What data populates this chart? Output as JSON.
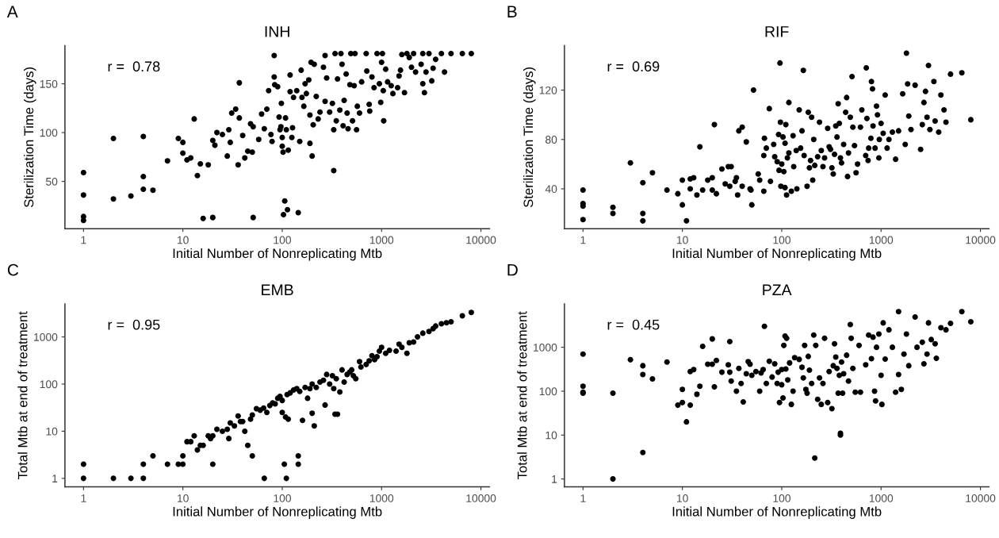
{
  "chart_data": [
    {
      "type": "scatter",
      "title": "INH",
      "xlabel": "Initial Number of Nonreplicating Mtb",
      "ylabel": "Sterilization Time (days)",
      "annotations": [
        "A",
        "r =  0.78"
      ],
      "color": "#000000",
      "marker": "circle",
      "log": "x",
      "xlim": [
        0.65,
        12200
      ],
      "xticks": [
        1,
        10,
        100,
        1000,
        10000
      ],
      "ylim": [
        1.6,
        189
      ],
      "yticks": [
        50,
        100,
        150
      ],
      "x": [
        1,
        1,
        1,
        1,
        2,
        2,
        3,
        4,
        4,
        4,
        5,
        7,
        9,
        10,
        10,
        11,
        12,
        13,
        14,
        15,
        16,
        18,
        20,
        20,
        21,
        22,
        25,
        28,
        29,
        30,
        31,
        34,
        36,
        37,
        37,
        40,
        42,
        45,
        48,
        50,
        51,
        51,
        58,
        62,
        66,
        70,
        73,
        77,
        79,
        83,
        83,
        84,
        90,
        93,
        95,
        97,
        98,
        100,
        100,
        102,
        103,
        106,
        108,
        110,
        113,
        115,
        120,
        120,
        125,
        127,
        130,
        140,
        145,
        150,
        155,
        158,
        165,
        170,
        175,
        185,
        190,
        190,
        195,
        200,
        205,
        210,
        220,
        230,
        240,
        260,
        270,
        270,
        280,
        300,
        320,
        330,
        330,
        340,
        350,
        360,
        380,
        390,
        400,
        410,
        420,
        440,
        450,
        460,
        480,
        490,
        510,
        530,
        540,
        560,
        570,
        600,
        630,
        700,
        710,
        750,
        760,
        800,
        840,
        900,
        950,
        980,
        1000,
        1020,
        1040,
        1050,
        1100,
        1150,
        1250,
        1300,
        1450,
        1500,
        1550,
        1600,
        1700,
        1800,
        1900,
        2000,
        2100,
        2200,
        2500,
        2600,
        2600,
        2700,
        2800,
        3000,
        3200,
        3300,
        3500,
        4000,
        4300,
        5000,
        6500,
        8000
      ],
      "values": [
        59,
        36,
        14,
        10,
        94,
        32,
        35,
        96,
        55,
        42,
        41,
        71,
        94,
        90,
        79,
        72,
        74,
        114,
        56,
        68,
        12,
        67,
        13,
        92,
        87,
        100,
        98,
        76,
        103,
        90,
        120,
        124,
        67,
        115,
        151,
        97,
        74,
        81,
        109,
        80,
        106,
        13,
        93,
        119,
        104,
        124,
        143,
        98,
        91,
        179,
        157,
        149,
        147,
        116,
        103,
        106,
        130,
        95,
        86,
        80,
        16,
        30,
        115,
        103,
        21,
        82,
        159,
        142,
        95,
        105,
        136,
        143,
        18,
        91,
        164,
        136,
        127,
        150,
        140,
        154,
        118,
        89,
        172,
        76,
        108,
        170,
        137,
        114,
        121,
        167,
        132,
        179,
        156,
        121,
        130,
        103,
        61,
        181,
        112,
        155,
        123,
        181,
        170,
        107,
        133,
        160,
        120,
        104,
        149,
        181,
        112,
        148,
        181,
        103,
        127,
        120,
        152,
        181,
        163,
        129,
        122,
        157,
        146,
        181,
        150,
        131,
        172,
        181,
        143,
        112,
        165,
        152,
        148,
        140,
        146,
        158,
        164,
        180,
        141,
        181,
        177,
        167,
        181,
        162,
        170,
        181,
        150,
        141,
        162,
        181,
        153,
        166,
        175,
        181,
        162,
        181,
        181,
        181
      ]
    },
    {
      "type": "scatter",
      "title": "RIF",
      "xlabel": "Initial Number of Nonreplicating Mtb",
      "ylabel": "Sterilization Time (days)",
      "annotations": [
        "B",
        "r =  0.69"
      ],
      "color": "#000000",
      "marker": "circle",
      "log": "x",
      "xlim": [
        0.65,
        12200
      ],
      "xticks": [
        1,
        10,
        100,
        1000,
        10000
      ],
      "ylim": [
        7.7,
        156
      ],
      "yticks": [
        40,
        80,
        120
      ],
      "x": [
        1,
        1,
        1,
        1,
        2,
        2,
        3,
        4,
        4,
        4,
        5,
        7,
        9,
        10,
        10,
        11,
        12,
        12,
        13,
        14,
        15,
        16,
        18,
        20,
        20,
        21,
        22,
        25,
        27,
        29,
        30,
        31,
        34,
        35,
        36,
        37,
        40,
        40,
        44,
        48,
        49,
        50,
        52,
        58,
        60,
        66,
        66,
        67,
        70,
        75,
        77,
        83,
        85,
        90,
        93,
        94,
        96,
        97,
        98,
        100,
        103,
        105,
        108,
        108,
        110,
        112,
        114,
        118,
        118,
        125,
        130,
        132,
        140,
        142,
        150,
        155,
        160,
        165,
        168,
        180,
        185,
        190,
        195,
        200,
        205,
        210,
        215,
        230,
        240,
        250,
        260,
        270,
        290,
        300,
        310,
        320,
        330,
        340,
        350,
        360,
        370,
        380,
        390,
        400,
        420,
        440,
        450,
        460,
        470,
        490,
        510,
        520,
        540,
        560,
        580,
        620,
        640,
        700,
        710,
        720,
        740,
        750,
        790,
        800,
        820,
        830,
        870,
        900,
        920,
        950,
        960,
        1000,
        1050,
        1100,
        1150,
        1200,
        1300,
        1400,
        1500,
        1650,
        1750,
        1800,
        1850,
        1900,
        2000,
        2200,
        2500,
        2600,
        2700,
        2800,
        2900,
        3000,
        3100,
        3400,
        3500,
        3800,
        4000,
        4300,
        4500,
        5000,
        6500,
        8000
      ],
      "values": [
        39,
        28,
        26,
        15,
        25,
        20,
        61,
        45,
        20,
        14,
        53,
        39,
        36,
        47,
        27,
        14,
        40,
        48,
        49,
        35,
        74,
        39,
        47,
        49,
        39,
        92,
        36,
        56,
        44,
        58,
        42,
        58,
        46,
        49,
        35,
        87,
        90,
        42,
        78,
        40,
        39,
        27,
        120,
        52,
        47,
        38,
        67,
        81,
        73,
        105,
        46,
        76,
        66,
        62,
        84,
        55,
        142,
        94,
        42,
        60,
        82,
        54,
        77,
        41,
        92,
        35,
        65,
        110,
        69,
        38,
        83,
        58,
        71,
        40,
        104,
        73,
        87,
        136,
        67,
        42,
        102,
        57,
        63,
        98,
        47,
        80,
        59,
        66,
        94,
        71,
        58,
        65,
        89,
        74,
        72,
        57,
        52,
        68,
        91,
        82,
        109,
        93,
        65,
        61,
        76,
        102,
        114,
        50,
        69,
        98,
        131,
        90,
        75,
        53,
        60,
        90,
        104,
        67,
        138,
        97,
        63,
        73,
        81,
        127,
        121,
        91,
        73,
        107,
        100,
        65,
        80,
        93,
        85,
        116,
        73,
        80,
        86,
        64,
        87,
        117,
        76,
        150,
        125,
        99,
        88,
        124,
        72,
        92,
        110,
        119,
        98,
        140,
        88,
        127,
        95,
        86,
        116,
        104,
        94,
        133,
        134,
        96
      ]
    },
    {
      "type": "scatter",
      "title": "EMB",
      "xlabel": "Initial Number of Nonreplicating Mtb",
      "ylabel": "Total Mtb at end of treatment",
      "annotations": [
        "C",
        "r =  0.95"
      ],
      "color": "#000000",
      "marker": "circle",
      "log": "xy",
      "xlim": [
        0.65,
        12200
      ],
      "xticks": [
        1,
        10,
        100,
        1000,
        10000
      ],
      "ylim": [
        0.66,
        5000
      ],
      "yticks": [
        1,
        10,
        100,
        1000
      ],
      "x": [
        1,
        1,
        2,
        3,
        4,
        4,
        5,
        7,
        9,
        10,
        10,
        11,
        12,
        13,
        14,
        15,
        16,
        18,
        19,
        20,
        20,
        22,
        25,
        28,
        29,
        30,
        33,
        36,
        38,
        40,
        42,
        45,
        48,
        50,
        50,
        55,
        60,
        65,
        66,
        70,
        75,
        80,
        85,
        90,
        95,
        100,
        100,
        105,
        108,
        110,
        112,
        115,
        120,
        130,
        140,
        145,
        145,
        150,
        160,
        170,
        180,
        190,
        200,
        200,
        210,
        220,
        240,
        260,
        270,
        280,
        300,
        320,
        330,
        340,
        350,
        360,
        380,
        400,
        420,
        450,
        480,
        500,
        520,
        550,
        600,
        620,
        700,
        750,
        800,
        850,
        900,
        950,
        1000,
        1100,
        1200,
        1400,
        1500,
        1600,
        1800,
        1900,
        2100,
        2300,
        2600,
        3000,
        3300,
        3500,
        4000,
        4500,
        5000,
        6500,
        8000
      ],
      "values": [
        1,
        2,
        1,
        1,
        1,
        2,
        3,
        2,
        2,
        2,
        3,
        6,
        6,
        8,
        4,
        5,
        5,
        8,
        7,
        2,
        8,
        11,
        10,
        11,
        7,
        15,
        13,
        21,
        16,
        16,
        10,
        5,
        18,
        22,
        3,
        30,
        28,
        31,
        1,
        25,
        35,
        40,
        38,
        50,
        55,
        45,
        25,
        2,
        20,
        1,
        60,
        18,
        65,
        75,
        80,
        3,
        2,
        70,
        17,
        85,
        50,
        80,
        100,
        24,
        13,
        85,
        110,
        120,
        36,
        160,
        100,
        150,
        80,
        23,
        130,
        23,
        68,
        200,
        110,
        160,
        180,
        200,
        150,
        130,
        300,
        230,
        260,
        310,
        400,
        330,
        380,
        500,
        600,
        450,
        520,
        500,
        700,
        600,
        450,
        750,
        780,
        1000,
        1200,
        1300,
        1500,
        1700,
        1900,
        2000,
        2100,
        2800,
        3300
      ]
    },
    {
      "type": "scatter",
      "title": "PZA",
      "xlabel": "Initial Number of Nonreplicating Mtb",
      "ylabel": "Total Mtb at end of treatment",
      "annotations": [
        "D",
        "r =  0.45"
      ],
      "color": "#000000",
      "marker": "circle",
      "log": "xy",
      "xlim": [
        0.65,
        12200
      ],
      "xticks": [
        1,
        10,
        100,
        1000,
        10000
      ],
      "ylim": [
        0.66,
        9700
      ],
      "yticks": [
        1,
        10,
        100,
        1000
      ],
      "x": [
        1,
        1,
        1,
        1,
        2,
        2,
        3,
        4,
        4,
        4,
        5,
        7,
        9,
        10,
        10,
        11,
        12,
        12,
        13,
        14,
        15,
        16,
        18,
        20,
        20,
        21,
        22,
        25,
        29,
        30,
        30,
        31,
        35,
        37,
        39,
        41,
        44,
        46,
        48,
        50,
        55,
        60,
        62,
        65,
        67,
        70,
        75,
        80,
        85,
        90,
        92,
        95,
        100,
        100,
        103,
        105,
        108,
        110,
        112,
        115,
        120,
        125,
        130,
        135,
        150,
        160,
        165,
        170,
        175,
        180,
        185,
        190,
        200,
        210,
        215,
        220,
        230,
        240,
        250,
        260,
        270,
        290,
        300,
        320,
        330,
        340,
        350,
        360,
        370,
        380,
        390,
        390,
        400,
        410,
        420,
        450,
        470,
        490,
        500,
        520,
        550,
        600,
        620,
        700,
        750,
        800,
        830,
        860,
        880,
        900,
        950,
        1000,
        1020,
        1050,
        1100,
        1200,
        1300,
        1400,
        1500,
        1500,
        1600,
        1700,
        1800,
        1900,
        2200,
        2300,
        2600,
        2700,
        2900,
        3000,
        3200,
        3500,
        3600,
        4000,
        4500,
        5000,
        6500,
        8000
      ],
      "values": [
        700,
        130,
        95,
        90,
        90,
        1,
        520,
        380,
        240,
        4,
        190,
        460,
        48,
        110,
        55,
        20,
        280,
        48,
        310,
        85,
        130,
        1050,
        410,
        1550,
        410,
        125,
        500,
        270,
        400,
        1350,
        270,
        170,
        100,
        330,
        150,
        57,
        250,
        470,
        410,
        230,
        280,
        100,
        260,
        310,
        3000,
        150,
        480,
        210,
        420,
        150,
        270,
        55,
        140,
        310,
        70,
        1100,
        1800,
        320,
        1600,
        180,
        440,
        50,
        100,
        580,
        530,
        350,
        200,
        1100,
        110,
        90,
        620,
        300,
        150,
        1900,
        3,
        1100,
        65,
        200,
        50,
        150,
        1600,
        55,
        280,
        40,
        380,
        1200,
        600,
        330,
        90,
        230,
        11,
        10,
        460,
        90,
        250,
        660,
        170,
        3300,
        1600,
        330,
        95,
        1100,
        95,
        400,
        1900,
        550,
        1700,
        100,
        60,
        1000,
        2000,
        230,
        50,
        3600,
        540,
        2500,
        1000,
        95,
        6500,
        240,
        110,
        700,
        2000,
        380,
        4900,
        1000,
        1300,
        420,
        700,
        3600,
        1500,
        1200,
        560,
        2800,
        2500,
        3500,
        6500,
        3800
      ]
    }
  ]
}
